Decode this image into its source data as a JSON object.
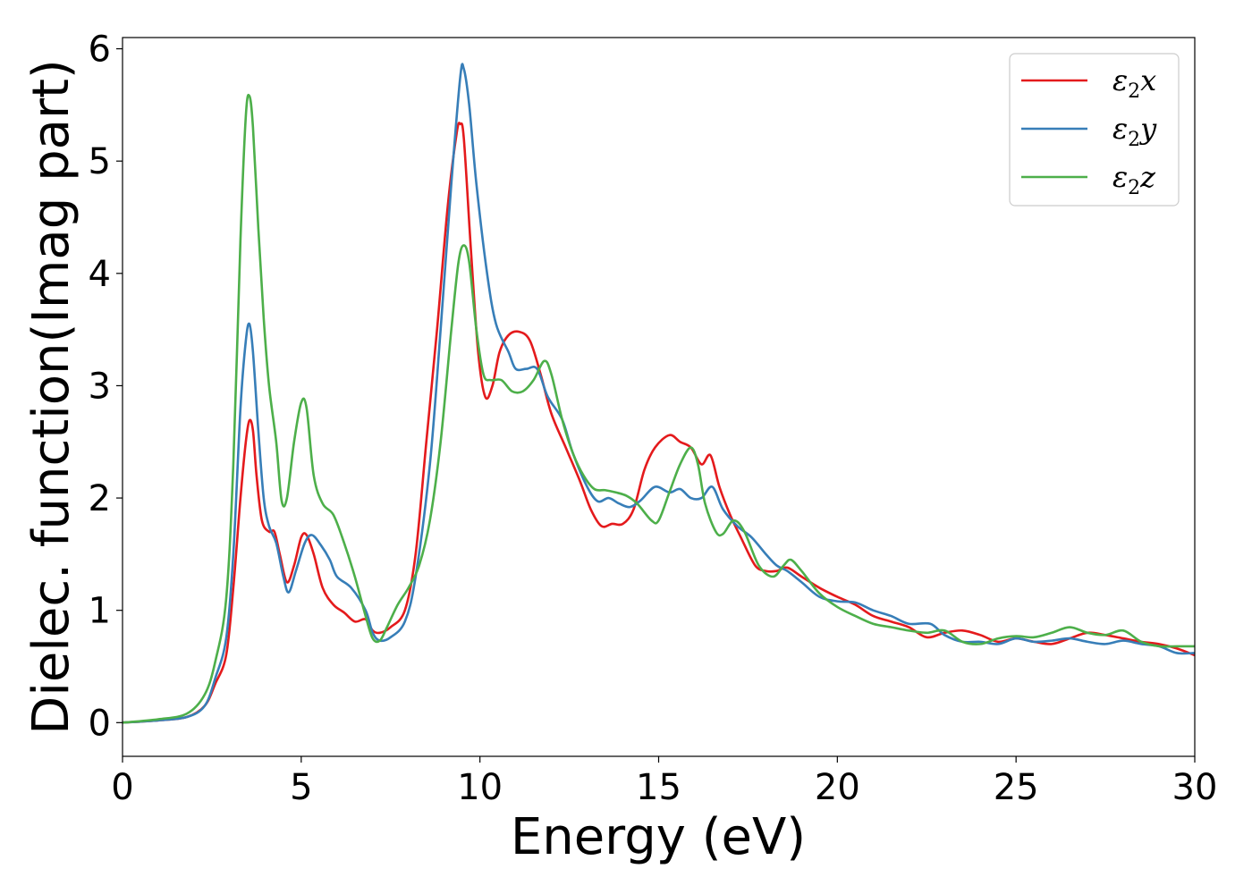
{
  "chart_data": {
    "type": "line",
    "xlabel": "Energy (eV)",
    "ylabel": "Dielec. function(Imag part)",
    "xlim": [
      0,
      30
    ],
    "ylim": [
      -0.3,
      6.1
    ],
    "xticks": [
      0,
      5,
      10,
      15,
      20,
      25,
      30
    ],
    "yticks": [
      0,
      1,
      2,
      3,
      4,
      5,
      6
    ],
    "grid": false,
    "legend_position": "top-right",
    "colors": {
      "x": "#e41a1c",
      "y": "#377eb8",
      "z": "#4daf4a"
    },
    "series": [
      {
        "name": "ε2x",
        "legend_base": "ε",
        "legend_sub": "2",
        "legend_tail": "x",
        "color": "#e41a1c",
        "points": [
          [
            0,
            0
          ],
          [
            1,
            0.02
          ],
          [
            1.8,
            0.05
          ],
          [
            2.3,
            0.15
          ],
          [
            2.6,
            0.35
          ],
          [
            2.9,
            0.6
          ],
          [
            3.1,
            1.2
          ],
          [
            3.3,
            2.0
          ],
          [
            3.45,
            2.5
          ],
          [
            3.55,
            2.69
          ],
          [
            3.65,
            2.6
          ],
          [
            3.75,
            2.2
          ],
          [
            3.9,
            1.8
          ],
          [
            4.1,
            1.7
          ],
          [
            4.25,
            1.7
          ],
          [
            4.4,
            1.5
          ],
          [
            4.6,
            1.25
          ],
          [
            4.8,
            1.4
          ],
          [
            5.0,
            1.65
          ],
          [
            5.15,
            1.67
          ],
          [
            5.35,
            1.5
          ],
          [
            5.6,
            1.2
          ],
          [
            5.9,
            1.05
          ],
          [
            6.2,
            0.98
          ],
          [
            6.5,
            0.9
          ],
          [
            6.8,
            0.92
          ],
          [
            7.0,
            0.82
          ],
          [
            7.2,
            0.8
          ],
          [
            7.5,
            0.85
          ],
          [
            7.9,
            1.0
          ],
          [
            8.2,
            1.5
          ],
          [
            8.5,
            2.5
          ],
          [
            8.8,
            3.5
          ],
          [
            9.1,
            4.6
          ],
          [
            9.35,
            5.25
          ],
          [
            9.45,
            5.33
          ],
          [
            9.55,
            5.2
          ],
          [
            9.75,
            4.2
          ],
          [
            9.95,
            3.3
          ],
          [
            10.15,
            2.9
          ],
          [
            10.35,
            3.0
          ],
          [
            10.55,
            3.3
          ],
          [
            10.8,
            3.45
          ],
          [
            11.1,
            3.48
          ],
          [
            11.4,
            3.4
          ],
          [
            11.7,
            3.1
          ],
          [
            12.0,
            2.75
          ],
          [
            12.4,
            2.45
          ],
          [
            12.8,
            2.15
          ],
          [
            13.1,
            1.9
          ],
          [
            13.4,
            1.75
          ],
          [
            13.7,
            1.77
          ],
          [
            14.0,
            1.77
          ],
          [
            14.3,
            1.9
          ],
          [
            14.6,
            2.25
          ],
          [
            14.9,
            2.45
          ],
          [
            15.3,
            2.56
          ],
          [
            15.6,
            2.5
          ],
          [
            15.9,
            2.45
          ],
          [
            16.2,
            2.3
          ],
          [
            16.45,
            2.38
          ],
          [
            16.7,
            2.1
          ],
          [
            17.0,
            1.85
          ],
          [
            17.3,
            1.65
          ],
          [
            17.7,
            1.4
          ],
          [
            18.0,
            1.35
          ],
          [
            18.3,
            1.35
          ],
          [
            18.6,
            1.38
          ],
          [
            19.0,
            1.3
          ],
          [
            19.5,
            1.2
          ],
          [
            20.0,
            1.12
          ],
          [
            20.5,
            1.05
          ],
          [
            21.0,
            0.95
          ],
          [
            21.5,
            0.9
          ],
          [
            22.0,
            0.85
          ],
          [
            22.5,
            0.76
          ],
          [
            23.0,
            0.8
          ],
          [
            23.5,
            0.82
          ],
          [
            24.0,
            0.78
          ],
          [
            24.5,
            0.72
          ],
          [
            25.0,
            0.75
          ],
          [
            25.5,
            0.72
          ],
          [
            26.0,
            0.7
          ],
          [
            26.5,
            0.75
          ],
          [
            27.0,
            0.8
          ],
          [
            27.5,
            0.78
          ],
          [
            28.0,
            0.75
          ],
          [
            28.5,
            0.72
          ],
          [
            29.0,
            0.7
          ],
          [
            29.5,
            0.66
          ],
          [
            30.0,
            0.6
          ]
        ]
      },
      {
        "name": "ε2y",
        "legend_base": "ε",
        "legend_sub": "2",
        "legend_tail": "y",
        "color": "#377eb8",
        "points": [
          [
            0,
            0
          ],
          [
            1,
            0.02
          ],
          [
            1.8,
            0.05
          ],
          [
            2.3,
            0.15
          ],
          [
            2.6,
            0.4
          ],
          [
            2.9,
            0.75
          ],
          [
            3.1,
            1.5
          ],
          [
            3.3,
            2.8
          ],
          [
            3.45,
            3.4
          ],
          [
            3.55,
            3.55
          ],
          [
            3.65,
            3.3
          ],
          [
            3.8,
            2.6
          ],
          [
            3.95,
            2.0
          ],
          [
            4.1,
            1.75
          ],
          [
            4.3,
            1.6
          ],
          [
            4.5,
            1.3
          ],
          [
            4.65,
            1.16
          ],
          [
            4.85,
            1.35
          ],
          [
            5.1,
            1.6
          ],
          [
            5.3,
            1.67
          ],
          [
            5.55,
            1.58
          ],
          [
            5.8,
            1.45
          ],
          [
            6.0,
            1.3
          ],
          [
            6.4,
            1.2
          ],
          [
            6.8,
            1.0
          ],
          [
            7.0,
            0.8
          ],
          [
            7.2,
            0.73
          ],
          [
            7.5,
            0.76
          ],
          [
            7.9,
            0.9
          ],
          [
            8.2,
            1.3
          ],
          [
            8.6,
            2.3
          ],
          [
            8.9,
            3.5
          ],
          [
            9.2,
            4.8
          ],
          [
            9.45,
            5.75
          ],
          [
            9.55,
            5.82
          ],
          [
            9.7,
            5.5
          ],
          [
            9.9,
            4.8
          ],
          [
            10.2,
            4.0
          ],
          [
            10.45,
            3.55
          ],
          [
            10.8,
            3.3
          ],
          [
            11.0,
            3.15
          ],
          [
            11.3,
            3.15
          ],
          [
            11.6,
            3.15
          ],
          [
            11.9,
            2.9
          ],
          [
            12.3,
            2.7
          ],
          [
            12.6,
            2.4
          ],
          [
            13.0,
            2.1
          ],
          [
            13.3,
            1.97
          ],
          [
            13.6,
            2.0
          ],
          [
            13.9,
            1.95
          ],
          [
            14.2,
            1.92
          ],
          [
            14.5,
            1.98
          ],
          [
            14.9,
            2.1
          ],
          [
            15.3,
            2.05
          ],
          [
            15.6,
            2.08
          ],
          [
            15.9,
            2.0
          ],
          [
            16.2,
            2.0
          ],
          [
            16.5,
            2.1
          ],
          [
            16.8,
            1.9
          ],
          [
            17.2,
            1.75
          ],
          [
            17.6,
            1.65
          ],
          [
            18.0,
            1.5
          ],
          [
            18.3,
            1.4
          ],
          [
            18.6,
            1.35
          ],
          [
            19.0,
            1.25
          ],
          [
            19.5,
            1.12
          ],
          [
            20.0,
            1.08
          ],
          [
            20.5,
            1.07
          ],
          [
            21.0,
            1.0
          ],
          [
            21.5,
            0.95
          ],
          [
            22.0,
            0.88
          ],
          [
            22.6,
            0.88
          ],
          [
            23.0,
            0.78
          ],
          [
            23.5,
            0.72
          ],
          [
            24.0,
            0.72
          ],
          [
            24.5,
            0.7
          ],
          [
            25.0,
            0.75
          ],
          [
            25.5,
            0.72
          ],
          [
            26.0,
            0.73
          ],
          [
            26.5,
            0.75
          ],
          [
            27.0,
            0.72
          ],
          [
            27.5,
            0.7
          ],
          [
            28.0,
            0.73
          ],
          [
            28.5,
            0.7
          ],
          [
            29.0,
            0.68
          ],
          [
            29.5,
            0.62
          ],
          [
            30.0,
            0.62
          ]
        ]
      },
      {
        "name": "ε2z",
        "legend_base": "ε",
        "legend_sub": "2",
        "legend_tail": "z",
        "color": "#4daf4a",
        "points": [
          [
            0,
            0
          ],
          [
            1,
            0.03
          ],
          [
            1.8,
            0.08
          ],
          [
            2.3,
            0.25
          ],
          [
            2.6,
            0.55
          ],
          [
            2.9,
            1.1
          ],
          [
            3.1,
            2.3
          ],
          [
            3.3,
            4.3
          ],
          [
            3.45,
            5.4
          ],
          [
            3.55,
            5.58
          ],
          [
            3.65,
            5.3
          ],
          [
            3.8,
            4.4
          ],
          [
            3.95,
            3.6
          ],
          [
            4.1,
            3.0
          ],
          [
            4.3,
            2.5
          ],
          [
            4.45,
            1.98
          ],
          [
            4.6,
            2.0
          ],
          [
            4.8,
            2.5
          ],
          [
            5.0,
            2.85
          ],
          [
            5.15,
            2.8
          ],
          [
            5.35,
            2.2
          ],
          [
            5.6,
            1.95
          ],
          [
            5.9,
            1.85
          ],
          [
            6.2,
            1.6
          ],
          [
            6.5,
            1.3
          ],
          [
            6.8,
            0.95
          ],
          [
            7.0,
            0.75
          ],
          [
            7.2,
            0.73
          ],
          [
            7.4,
            0.85
          ],
          [
            7.7,
            1.05
          ],
          [
            8.0,
            1.2
          ],
          [
            8.3,
            1.4
          ],
          [
            8.6,
            1.8
          ],
          [
            8.9,
            2.5
          ],
          [
            9.2,
            3.5
          ],
          [
            9.4,
            4.1
          ],
          [
            9.55,
            4.25
          ],
          [
            9.7,
            4.1
          ],
          [
            9.9,
            3.5
          ],
          [
            10.1,
            3.1
          ],
          [
            10.3,
            3.05
          ],
          [
            10.6,
            3.05
          ],
          [
            10.9,
            2.95
          ],
          [
            11.2,
            2.95
          ],
          [
            11.5,
            3.05
          ],
          [
            11.8,
            3.22
          ],
          [
            12.0,
            3.1
          ],
          [
            12.3,
            2.7
          ],
          [
            12.6,
            2.4
          ],
          [
            12.9,
            2.2
          ],
          [
            13.2,
            2.08
          ],
          [
            13.5,
            2.07
          ],
          [
            13.8,
            2.05
          ],
          [
            14.1,
            2.02
          ],
          [
            14.4,
            1.95
          ],
          [
            14.8,
            1.8
          ],
          [
            15.0,
            1.8
          ],
          [
            15.3,
            2.05
          ],
          [
            15.6,
            2.3
          ],
          [
            15.9,
            2.45
          ],
          [
            16.1,
            2.3
          ],
          [
            16.3,
            1.95
          ],
          [
            16.6,
            1.7
          ],
          [
            16.8,
            1.68
          ],
          [
            17.1,
            1.8
          ],
          [
            17.4,
            1.7
          ],
          [
            17.8,
            1.4
          ],
          [
            18.2,
            1.3
          ],
          [
            18.5,
            1.4
          ],
          [
            18.7,
            1.45
          ],
          [
            19.0,
            1.35
          ],
          [
            19.5,
            1.15
          ],
          [
            20.0,
            1.03
          ],
          [
            20.5,
            0.95
          ],
          [
            21.0,
            0.88
          ],
          [
            21.5,
            0.85
          ],
          [
            22.0,
            0.82
          ],
          [
            22.5,
            0.8
          ],
          [
            23.0,
            0.82
          ],
          [
            23.5,
            0.72
          ],
          [
            24.0,
            0.7
          ],
          [
            24.5,
            0.75
          ],
          [
            25.0,
            0.77
          ],
          [
            25.5,
            0.76
          ],
          [
            26.0,
            0.8
          ],
          [
            26.5,
            0.85
          ],
          [
            27.0,
            0.8
          ],
          [
            27.5,
            0.78
          ],
          [
            28.0,
            0.82
          ],
          [
            28.5,
            0.72
          ],
          [
            29.0,
            0.68
          ],
          [
            29.5,
            0.68
          ],
          [
            30.0,
            0.68
          ]
        ]
      }
    ]
  }
}
